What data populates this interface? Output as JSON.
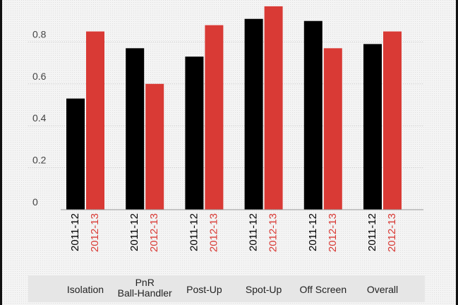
{
  "chart_data": {
    "type": "bar",
    "categories": [
      [
        "Isolation"
      ],
      [
        "PnR",
        "Ball-Handler"
      ],
      [
        "Post-Up"
      ],
      [
        "Spot-Up"
      ],
      [
        "Off Screen"
      ],
      [
        "Overall"
      ]
    ],
    "series": [
      {
        "name": "2011-12",
        "color": "#000000",
        "values": [
          0.53,
          0.77,
          0.73,
          0.91,
          0.9,
          0.79
        ]
      },
      {
        "name": "2012-13",
        "color": "#d93a35",
        "values": [
          0.85,
          0.6,
          0.88,
          0.97,
          0.77,
          0.85
        ]
      }
    ],
    "yticks": [
      "0",
      "0.2",
      "0.4",
      "0.6",
      "0.8"
    ],
    "ylim": [
      0,
      1
    ],
    "grid": true,
    "background": "#f1f1f1",
    "label_band_color": "#e8e8e8"
  }
}
